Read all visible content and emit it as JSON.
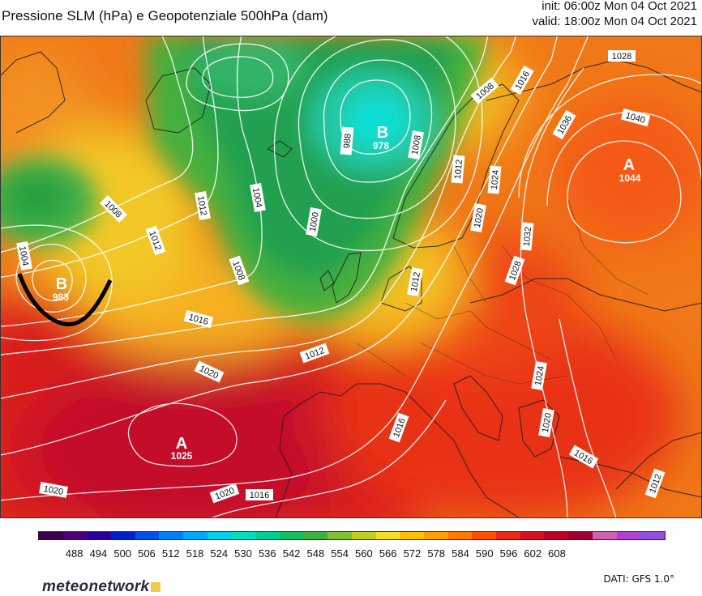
{
  "header": {
    "title": "Pressione SLM (hPa) e Geopotenziale 500hPa (dam)",
    "init": "init: 06:00z Mon 04 Oct 2021",
    "valid": "valid: 18:00z Mon 04 Oct 2021"
  },
  "pressure_centers": [
    {
      "type": "low",
      "letter": "B",
      "value": "978",
      "name": "low-icelandic"
    },
    {
      "type": "low",
      "letter": "B",
      "value": "983",
      "name": "low-atlantic-west"
    },
    {
      "type": "high",
      "letter": "A",
      "value": "1044",
      "name": "high-russia"
    },
    {
      "type": "high",
      "letter": "A",
      "value": "1025",
      "name": "high-azores"
    }
  ],
  "isobar_labels": [
    "1028",
    "1016",
    "1008",
    "1012",
    "1040",
    "1036",
    "1044",
    "1024",
    "1020",
    "1004",
    "1000",
    "988",
    "1032",
    "1016",
    "1012",
    "1008",
    "1016",
    "1020",
    "1020",
    "1016",
    "1016",
    "1012",
    "1020",
    "1004",
    "1020",
    "1028"
  ],
  "legend": {
    "values": [
      "488",
      "494",
      "500",
      "506",
      "512",
      "518",
      "524",
      "530",
      "536",
      "542",
      "548",
      "554",
      "560",
      "566",
      "572",
      "578",
      "584",
      "590",
      "596",
      "602",
      "608"
    ],
    "colors": [
      "#3d0050",
      "#4b0078",
      "#2a009a",
      "#0020d0",
      "#0050f0",
      "#0080ff",
      "#00a8ff",
      "#00d0f0",
      "#00e0c0",
      "#00d090",
      "#10c060",
      "#40b040",
      "#80c030",
      "#c0d020",
      "#f0e020",
      "#ffc000",
      "#ffa000",
      "#ff7a00",
      "#ff5000",
      "#f02818",
      "#d81020",
      "#c00028",
      "#a00030",
      "#d060b0",
      "#b040d0",
      "#9050e0"
    ]
  },
  "brand": {
    "name": "meteonetwork"
  },
  "source": "DATI: GFS 1.0°"
}
